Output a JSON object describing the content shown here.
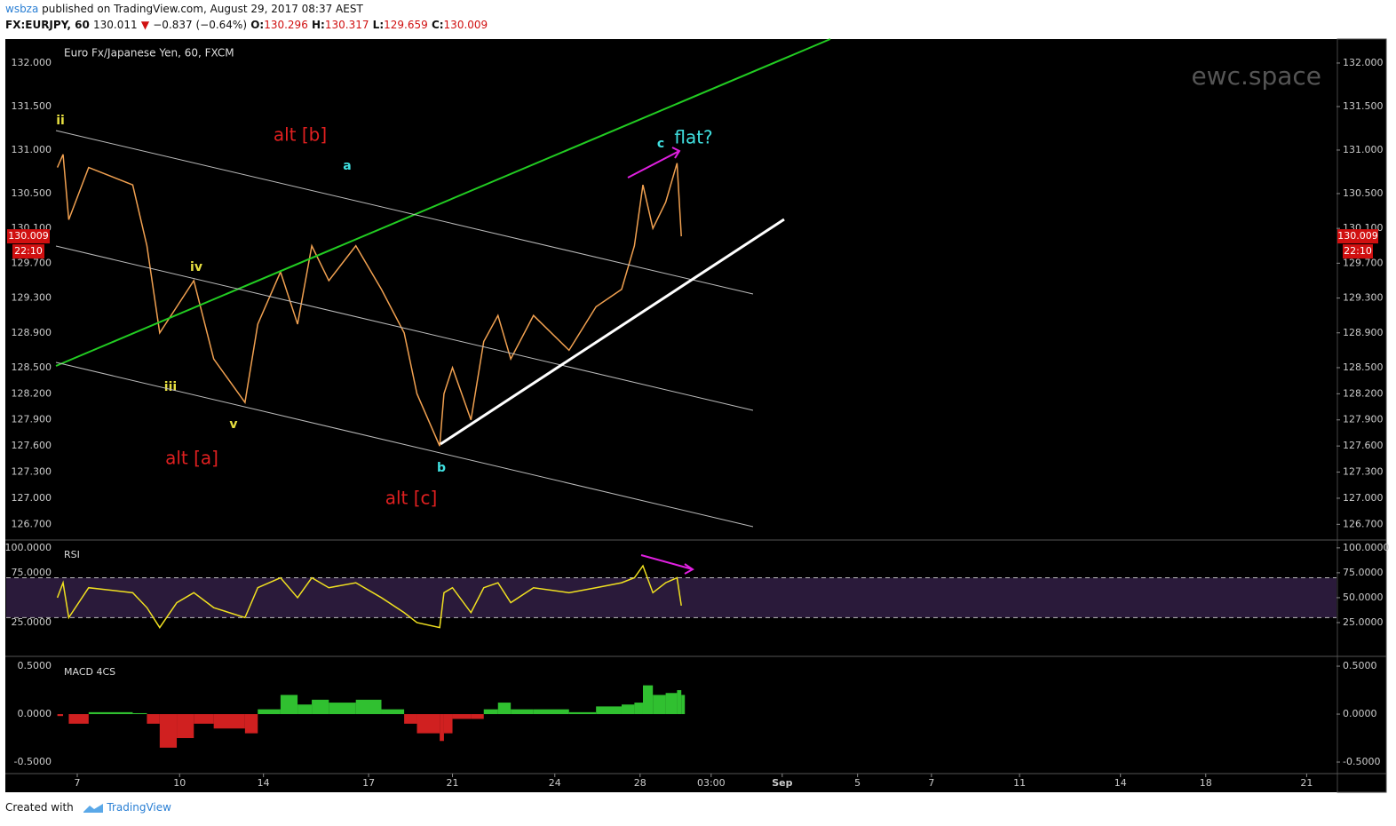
{
  "header": {
    "author": "wsbza",
    "published": "published on TradingView.com, August 29, 2017 08:37 AEST",
    "symbol": "FX:EURJPY, 60",
    "last": "130.011",
    "arrow": "▼",
    "change": "−0.837 (−0.64%)",
    "open_label": "O:",
    "open": "130.296",
    "high_label": "H:",
    "high": "130.317",
    "low_label": "L:",
    "low": "129.659",
    "close_label": "C:",
    "close": "130.009"
  },
  "footer": {
    "created": "Created with",
    "brand": "TradingView"
  },
  "chart_data": [
    {
      "type": "line",
      "title": "Euro Fx/Japanese Yen, 60, FXCM",
      "watermark": "ewc.space",
      "countdown": "22:10",
      "x": [
        36,
        40,
        44,
        58,
        89,
        99,
        108,
        120,
        132,
        146,
        168,
        177,
        193,
        205,
        215,
        227,
        246,
        264,
        280,
        289,
        305,
        308,
        314,
        327,
        336,
        346,
        355,
        371,
        396,
        415,
        433,
        442,
        448,
        455,
        464,
        472,
        475
      ],
      "series": [
        {
          "color": "#f0a050",
          "values": [
            130.8,
            130.95,
            130.2,
            130.8,
            130.6,
            129.9,
            128.9,
            129.2,
            129.5,
            128.6,
            128.1,
            129.0,
            129.6,
            129.0,
            129.9,
            129.5,
            129.9,
            129.4,
            128.9,
            128.2,
            127.6,
            128.2,
            128.5,
            127.9,
            128.8,
            129.1,
            128.6,
            129.1,
            128.7,
            129.2,
            129.4,
            129.9,
            130.6,
            130.1,
            130.4,
            130.85,
            130.009
          ]
        }
      ],
      "xlim": [
        0,
        936
      ],
      "xticks": [
        {
          "value": 50,
          "label": "7"
        },
        {
          "value": 122,
          "label": "10"
        },
        {
          "value": 181,
          "label": "14"
        },
        {
          "value": 255,
          "label": "17"
        },
        {
          "value": 314,
          "label": "21"
        },
        {
          "value": 386,
          "label": "24"
        },
        {
          "value": 446,
          "label": "28"
        },
        {
          "value": 496,
          "label": "03:00"
        },
        {
          "value": 546,
          "label": "Sep"
        },
        {
          "value": 599,
          "label": "5"
        },
        {
          "value": 651,
          "label": "7"
        },
        {
          "value": 713,
          "label": "11"
        },
        {
          "value": 784,
          "label": "14"
        },
        {
          "value": 844,
          "label": "18"
        },
        {
          "value": 915,
          "label": "21"
        }
      ],
      "ylim": [
        126.53,
        132.265
      ],
      "yticks": [
        {
          "value": 132,
          "label": "132.000"
        },
        {
          "value": 131.5,
          "label": "131.500"
        },
        {
          "value": 131,
          "label": "131.000"
        },
        {
          "value": 130.5,
          "label": "130.500"
        },
        {
          "value": 130.1,
          "label": "130.100"
        },
        {
          "value": 129.7,
          "label": "129.700"
        },
        {
          "value": 129.3,
          "label": "129.300"
        },
        {
          "value": 128.9,
          "label": "128.900"
        },
        {
          "value": 128.5,
          "label": "128.500"
        },
        {
          "value": 128.2,
          "label": "128.200"
        },
        {
          "value": 127.9,
          "label": "127.900"
        },
        {
          "value": 127.6,
          "label": "127.600"
        },
        {
          "value": 127.3,
          "label": "127.300"
        },
        {
          "value": 127,
          "label": "127.000"
        },
        {
          "value": 126.7,
          "label": "126.700"
        }
      ],
      "annotations": [
        {
          "text": "ii",
          "color": "#e8e040"
        },
        {
          "text": "iv",
          "color": "#e8e040"
        },
        {
          "text": "iii",
          "color": "#e8e040"
        },
        {
          "text": "v",
          "color": "#e8e040"
        },
        {
          "text": "a",
          "color": "#40e0e0"
        },
        {
          "text": "b",
          "color": "#40e0e0"
        },
        {
          "text": "c",
          "color": "#40e0e0"
        },
        {
          "text": "flat?",
          "color": "#40e0e0"
        },
        {
          "text": "alt [b]",
          "color": "#e02020"
        },
        {
          "text": "alt [a]",
          "color": "#e02020"
        },
        {
          "text": "alt [c]",
          "color": "#e02020"
        }
      ]
    },
    {
      "type": "line",
      "title": "RSI",
      "x": [
        36,
        40,
        44,
        58,
        89,
        99,
        108,
        120,
        132,
        146,
        168,
        177,
        193,
        205,
        215,
        227,
        246,
        264,
        280,
        289,
        305,
        308,
        314,
        327,
        336,
        346,
        355,
        371,
        396,
        415,
        433,
        442,
        448,
        455,
        464,
        472,
        475
      ],
      "series": [
        {
          "color": "#f0e020",
          "values": [
            50,
            65,
            30,
            60,
            55,
            40,
            20,
            45,
            55,
            40,
            30,
            60,
            70,
            50,
            70,
            60,
            65,
            50,
            35,
            25,
            20,
            55,
            60,
            35,
            60,
            65,
            45,
            60,
            55,
            60,
            65,
            70,
            82,
            55,
            65,
            70,
            42
          ]
        }
      ],
      "bands": [
        30,
        70
      ],
      "xlim": [
        0,
        936
      ],
      "ylim": [
        -8,
        107
      ],
      "yticks": [
        {
          "value": 100,
          "label": "100.0000"
        },
        {
          "value": 75,
          "label": "75.0000"
        },
        {
          "value": 50,
          "label": "50.0000"
        },
        {
          "value": 25,
          "label": "25.0000"
        }
      ]
    },
    {
      "type": "bar",
      "title": "MACD 4CS",
      "x": [
        36,
        40,
        44,
        58,
        89,
        99,
        108,
        120,
        132,
        146,
        168,
        177,
        193,
        205,
        215,
        227,
        246,
        264,
        280,
        289,
        305,
        308,
        314,
        327,
        336,
        346,
        355,
        371,
        396,
        415,
        433,
        442,
        448,
        455,
        464,
        472,
        475
      ],
      "series": [
        {
          "color": "#30c030",
          "values": [
            -0.02,
            0,
            -0.1,
            0.02,
            0.01,
            -0.1,
            -0.35,
            -0.25,
            -0.1,
            -0.15,
            -0.2,
            0.05,
            0.2,
            0.1,
            0.15,
            0.12,
            0.15,
            0.05,
            -0.1,
            -0.2,
            -0.28,
            -0.2,
            -0.05,
            -0.05,
            0.05,
            0.12,
            0.05,
            0.05,
            0.02,
            0.08,
            0.1,
            0.12,
            0.3,
            0.2,
            0.22,
            0.25,
            0.2
          ]
        }
      ],
      "negative_color": "#d02020",
      "xlim": [
        0,
        936
      ],
      "ylim": [
        -0.611,
        0.593
      ],
      "yticks": [
        {
          "value": 0.5,
          "label": "0.5000"
        },
        {
          "value": 0,
          "label": "0.0000"
        },
        {
          "value": -0.5,
          "label": "-0.5000"
        }
      ]
    }
  ]
}
